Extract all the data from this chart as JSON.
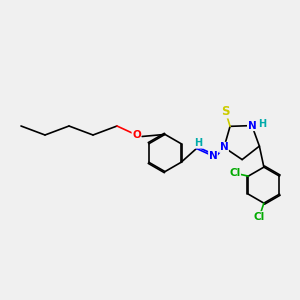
{
  "bg_color": "#f0f0f0",
  "bond_color": "#000000",
  "atom_colors": {
    "N": "#0000ff",
    "O": "#ff0000",
    "S": "#cccc00",
    "Cl": "#00aa00",
    "H_label": "#00aaaa",
    "C": "#000000"
  }
}
